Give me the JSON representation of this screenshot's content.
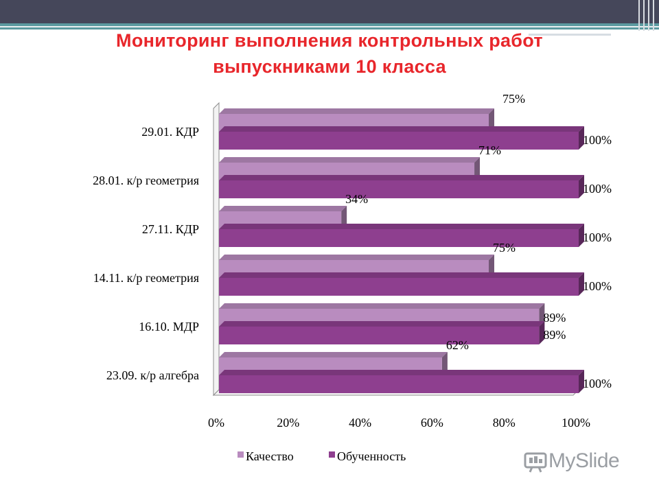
{
  "slide": {
    "title_line1": "Мониторинг выполнения контрольных работ",
    "title_line2": "выпускниками 10 класса"
  },
  "watermark": {
    "text": "MySlide"
  },
  "colors": {
    "kachestvo": "#b98cbf",
    "obuchennost": "#8e3f8f",
    "top_band": "#45475a",
    "accent_stripe": "#5b9aa0",
    "title": "#e8262b"
  },
  "chart_data": {
    "type": "bar",
    "orientation": "horizontal",
    "three_d": true,
    "title": "Мониторинг выполнения контрольных работ выпускниками 10 класса",
    "categories": [
      "29.01. КДР",
      "28.01. к/р геометрия",
      "27.11. КДР",
      "14.11. к/р геометрия",
      "16.10. МДР",
      "23.09. к/р алгебра"
    ],
    "series": [
      {
        "name": "Качество",
        "values": [
          75,
          71,
          34,
          75,
          89,
          62
        ],
        "labels": [
          "75%",
          "71%",
          "34%",
          "75%",
          "89%",
          "62%"
        ]
      },
      {
        "name": "Обученность",
        "values": [
          100,
          100,
          100,
          100,
          89,
          100
        ],
        "labels": [
          "100%",
          "100%",
          "100%",
          "100%",
          "89%",
          "100%"
        ]
      }
    ],
    "xlim": [
      0,
      100
    ],
    "x_ticks": [
      "0%",
      "20%",
      "40%",
      "60%",
      "80%",
      "100%"
    ],
    "xlabel": "",
    "ylabel": "",
    "grid": false,
    "legend_position": "bottom"
  }
}
